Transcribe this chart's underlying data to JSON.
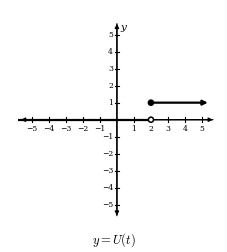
{
  "xlim": [
    -5.8,
    5.8
  ],
  "ylim": [
    -5.8,
    5.8
  ],
  "xticks": [
    -5,
    -4,
    -3,
    -2,
    -1,
    1,
    2,
    3,
    4,
    5
  ],
  "yticks": [
    -5,
    -4,
    -3,
    -2,
    -1,
    1,
    2,
    3,
    4,
    5
  ],
  "ylabel": "y",
  "title": "$y = U(t)$",
  "line1_x": [
    -5.8,
    2
  ],
  "line1_y": [
    0,
    0
  ],
  "open_circle": [
    2,
    0
  ],
  "closed_circle": [
    2,
    1
  ],
  "line_color": "black",
  "bg_color": "white",
  "tick_fontsize": 5.5,
  "label_fontsize": 7.5,
  "title_fontsize": 9
}
